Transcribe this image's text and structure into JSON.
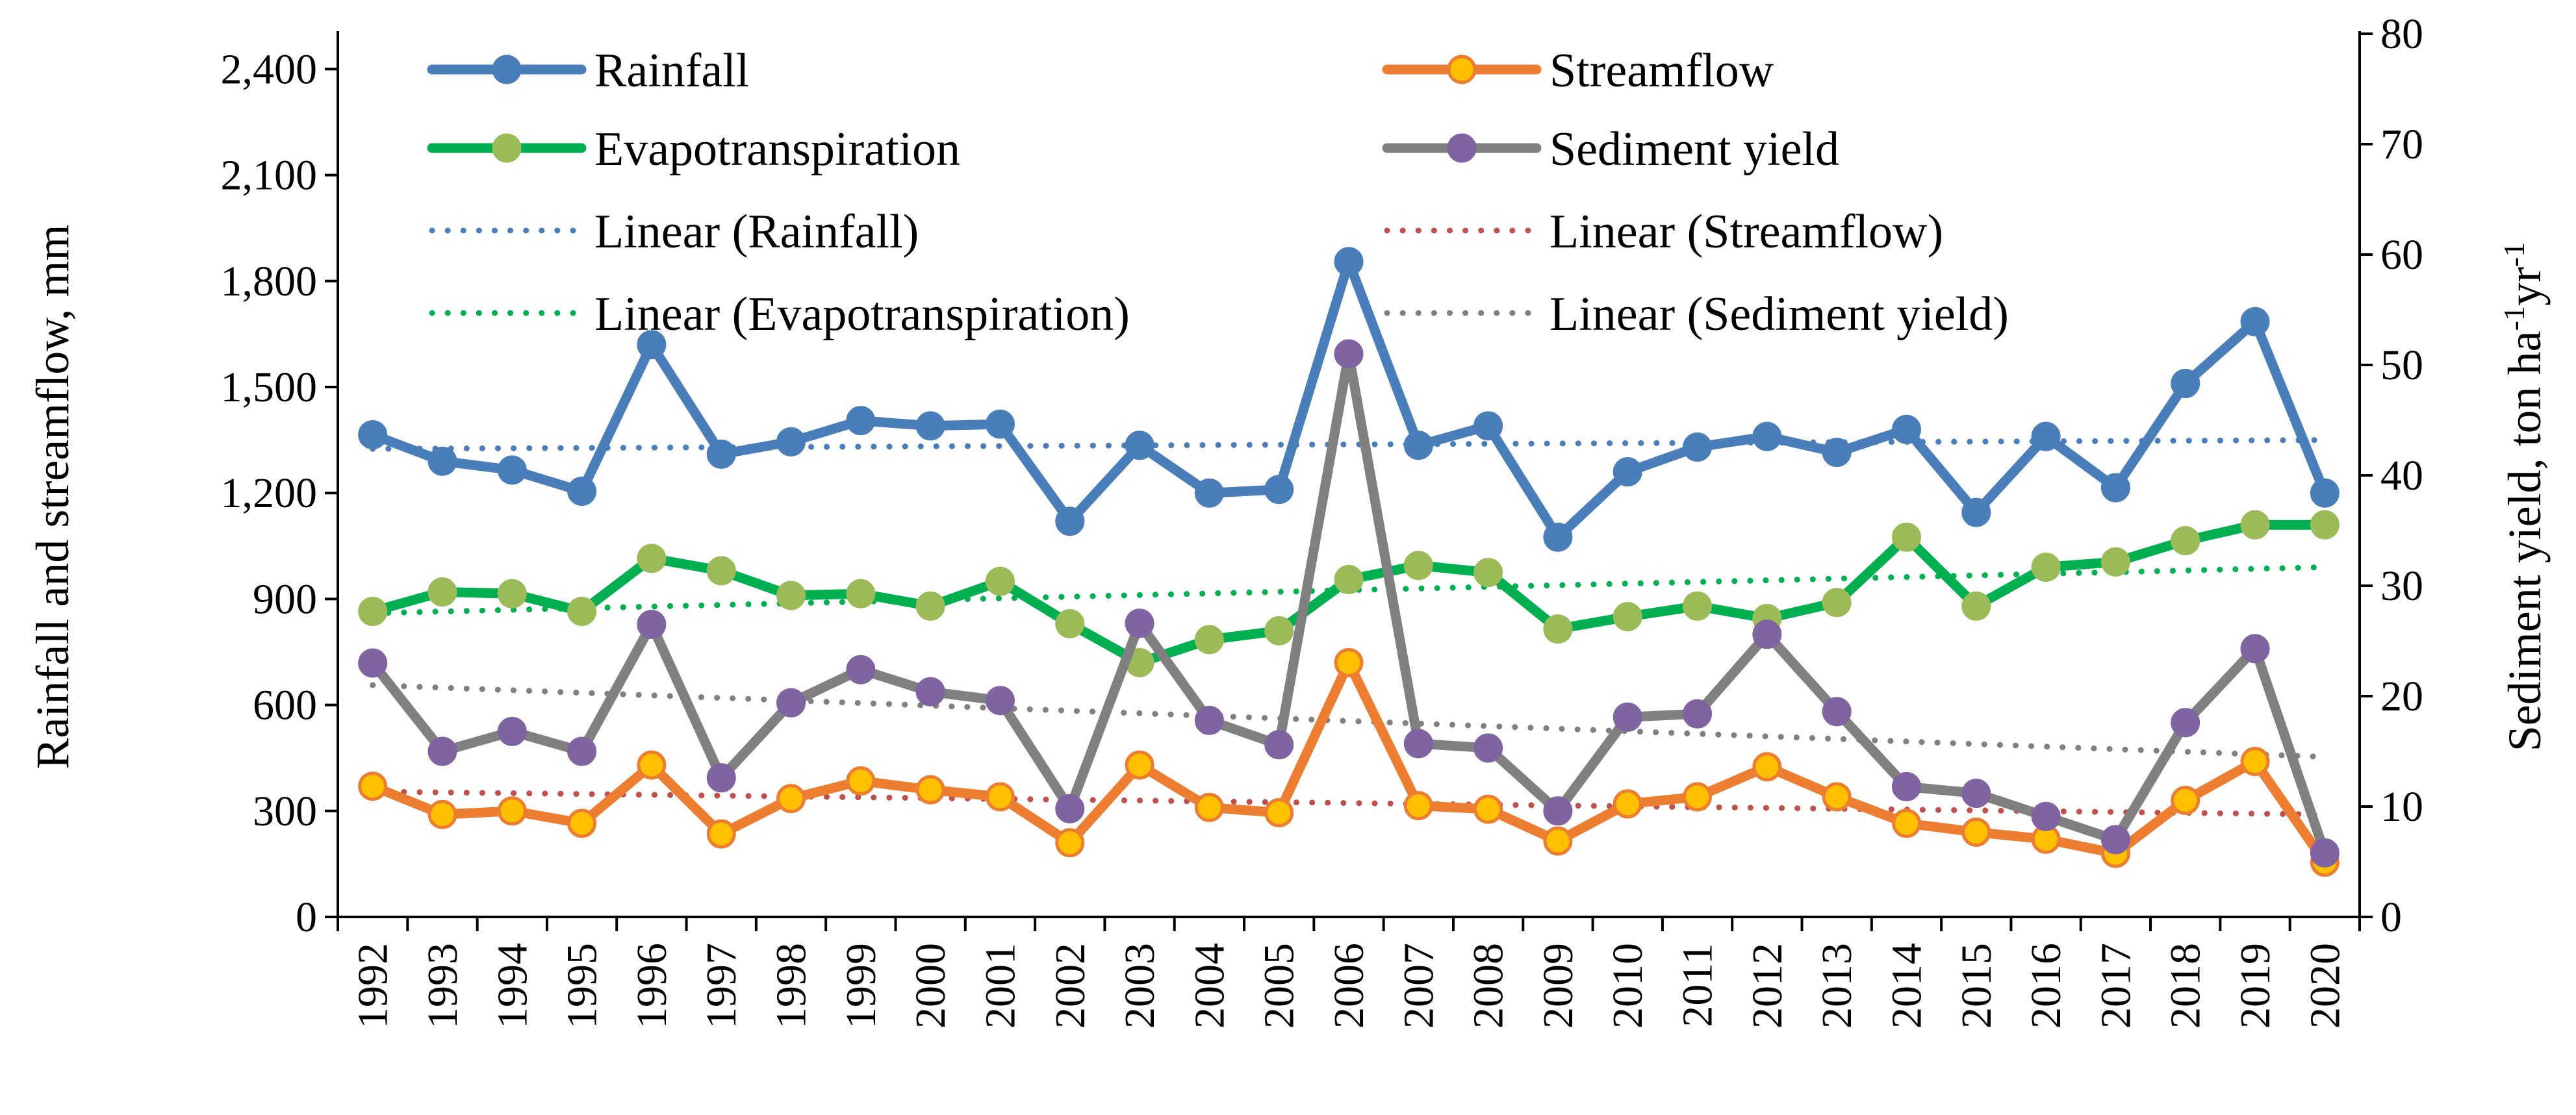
{
  "chart_data": {
    "type": "line",
    "title": "",
    "x": [
      "1992",
      "1993",
      "1994",
      "1995",
      "1996",
      "1997",
      "1998",
      "1999",
      "2000",
      "2001",
      "2002",
      "2003",
      "2004",
      "2005",
      "2006",
      "2007",
      "2008",
      "2009",
      "2010",
      "2011",
      "2012",
      "2013",
      "2014",
      "2015",
      "2016",
      "2017",
      "2018",
      "2019",
      "2020"
    ],
    "left_axis": {
      "label": "Rainfall and streamflow, mm",
      "ylim": [
        0,
        2500
      ],
      "ticks": [
        0,
        300,
        600,
        900,
        1200,
        1500,
        1800,
        2100,
        2400
      ],
      "tick_labels": [
        "0",
        "300",
        "600",
        "900",
        "1,200",
        "1,500",
        "1,800",
        "2,100",
        "2,400"
      ]
    },
    "right_axis": {
      "label_main": "Sediment yield, ton ha",
      "label_sup1": "-1",
      "label_mid": "yr",
      "label_sup2": "-1",
      "ylim": [
        0,
        80
      ],
      "ticks": [
        0,
        10,
        20,
        30,
        40,
        50,
        60,
        70,
        80
      ],
      "tick_labels": [
        "0",
        "10",
        "20",
        "30",
        "40",
        "50",
        "60",
        "70",
        "80"
      ]
    },
    "series": [
      {
        "key": "rainfall",
        "name": "Rainfall",
        "axis": "left",
        "color": "#4A7EBB",
        "marker_fill": "#4A7EBB",
        "marker_stroke": "#4A7EBB",
        "values": [
          1365,
          1290,
          1265,
          1205,
          1620,
          1310,
          1345,
          1405,
          1390,
          1395,
          1120,
          1335,
          1200,
          1210,
          1855,
          1335,
          1390,
          1075,
          1260,
          1330,
          1360,
          1315,
          1380,
          1145,
          1360,
          1215,
          1510,
          1685,
          1200
        ]
      },
      {
        "key": "streamflow",
        "name": "Streamflow",
        "axis": "left",
        "color": "#ED7D31",
        "marker_fill": "#FFC000",
        "marker_stroke": "#ED7D31",
        "values": [
          370,
          290,
          300,
          265,
          430,
          235,
          335,
          385,
          360,
          340,
          210,
          430,
          310,
          295,
          720,
          315,
          305,
          215,
          320,
          340,
          425,
          340,
          265,
          240,
          220,
          180,
          330,
          440,
          155
        ]
      },
      {
        "key": "evapotranspiration",
        "name": "Evapotranspiration",
        "axis": "left",
        "color": "#00B050",
        "marker_fill": "#9BBB59",
        "marker_stroke": "#9BBB59",
        "values": [
          865,
          920,
          915,
          865,
          1015,
          980,
          910,
          915,
          880,
          950,
          830,
          720,
          785,
          810,
          955,
          995,
          975,
          815,
          850,
          880,
          845,
          890,
          1075,
          880,
          990,
          1005,
          1065,
          1110,
          1110
        ]
      },
      {
        "key": "sediment",
        "name": "Sediment yield",
        "axis": "right",
        "color": "#808080",
        "marker_fill": "#8064A2",
        "marker_stroke": "#8064A2",
        "values": [
          23,
          15,
          16.8,
          15,
          26.5,
          12.6,
          19.4,
          22.4,
          20.4,
          19.6,
          9.8,
          26.6,
          17.8,
          15.6,
          51,
          15.7,
          15.3,
          9.6,
          18.1,
          18.4,
          25.6,
          18.6,
          11.8,
          11.2,
          9.1,
          7,
          17.6,
          24.3,
          5.8
        ]
      }
    ],
    "trendlines": [
      {
        "key": "rainfall_trend",
        "name": "Linear (Rainfall)",
        "axis": "left",
        "color": "#4A7EBB",
        "start": 1325,
        "end": 1350
      },
      {
        "key": "streamflow_trend",
        "name": "Linear (Streamflow)",
        "axis": "left",
        "color": "#C0504D",
        "start": 355,
        "end": 290
      },
      {
        "key": "et_trend",
        "name": "Linear (Evapotranspiration)",
        "axis": "left",
        "color": "#00B050",
        "start": 860,
        "end": 990
      },
      {
        "key": "sediment_trend",
        "name": "Linear (Sediment yield)",
        "axis": "right",
        "color": "#808080",
        "start": 21,
        "end": 14.5
      }
    ],
    "legend": {
      "placement": "top",
      "entries": [
        "Rainfall",
        "Streamflow",
        "Evapotranspiration",
        "Sediment yield",
        "Linear (Rainfall)",
        "Linear (Streamflow)",
        "Linear (Evapotranspiration)",
        "Linear (Sediment yield)"
      ]
    },
    "grid": false
  }
}
